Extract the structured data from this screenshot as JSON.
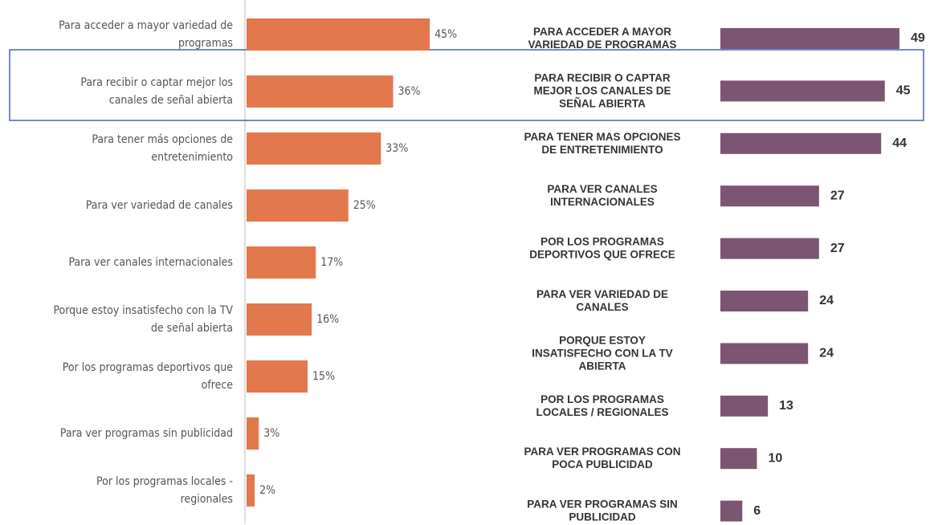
{
  "chart_data": [
    {
      "type": "bar",
      "orientation": "horizontal",
      "color": "#e2784c",
      "categories": [
        "Para acceder a mayor variedad de programas",
        "Para recibir o captar mejor los canales de señal abierta",
        "Para tener más opciones de entretenimiento",
        "Para ver variedad de canales",
        "Para ver canales internacionales",
        "Porque estoy insatisfecho con la TV de señal abierta",
        "Por los programas deportivos que ofrece",
        "Para ver programas sin publicidad",
        "Por los programas locales - regionales"
      ],
      "values": [
        45,
        36,
        33,
        25,
        17,
        16,
        15,
        3,
        2
      ],
      "value_labels": [
        "45%",
        "36%",
        "33%",
        "25%",
        "17%",
        "16%",
        "15%",
        "3%",
        "2%"
      ]
    },
    {
      "type": "bar",
      "orientation": "horizontal",
      "color": "#7b5572",
      "categories": [
        "PARA ACCEDER A MAYOR VARIEDAD DE PROGRAMAS",
        "PARA RECIBIR O CAPTAR MEJOR LOS CANALES DE SEÑAL ABIERTA",
        "PARA TENER MAS OPCIONES DE ENTRETENIMIENTO",
        "PARA VER CANALES INTERNACIONALES",
        "POR LOS PROGRAMAS DEPORTIVOS QUE OFRECE",
        "PARA VER VARIEDAD DE CANALES",
        "PORQUE ESTOY INSATISFECHO CON LA TV ABIERTA",
        "POR LOS PROGRAMAS LOCALES / REGIONALES",
        "PARA VER PROGRAMAS CON POCA PUBLICIDAD",
        "PARA VER PROGRAMAS SIN PUBLICIDAD"
      ],
      "values": [
        49,
        45,
        44,
        27,
        27,
        24,
        24,
        13,
        10,
        6
      ]
    }
  ]
}
